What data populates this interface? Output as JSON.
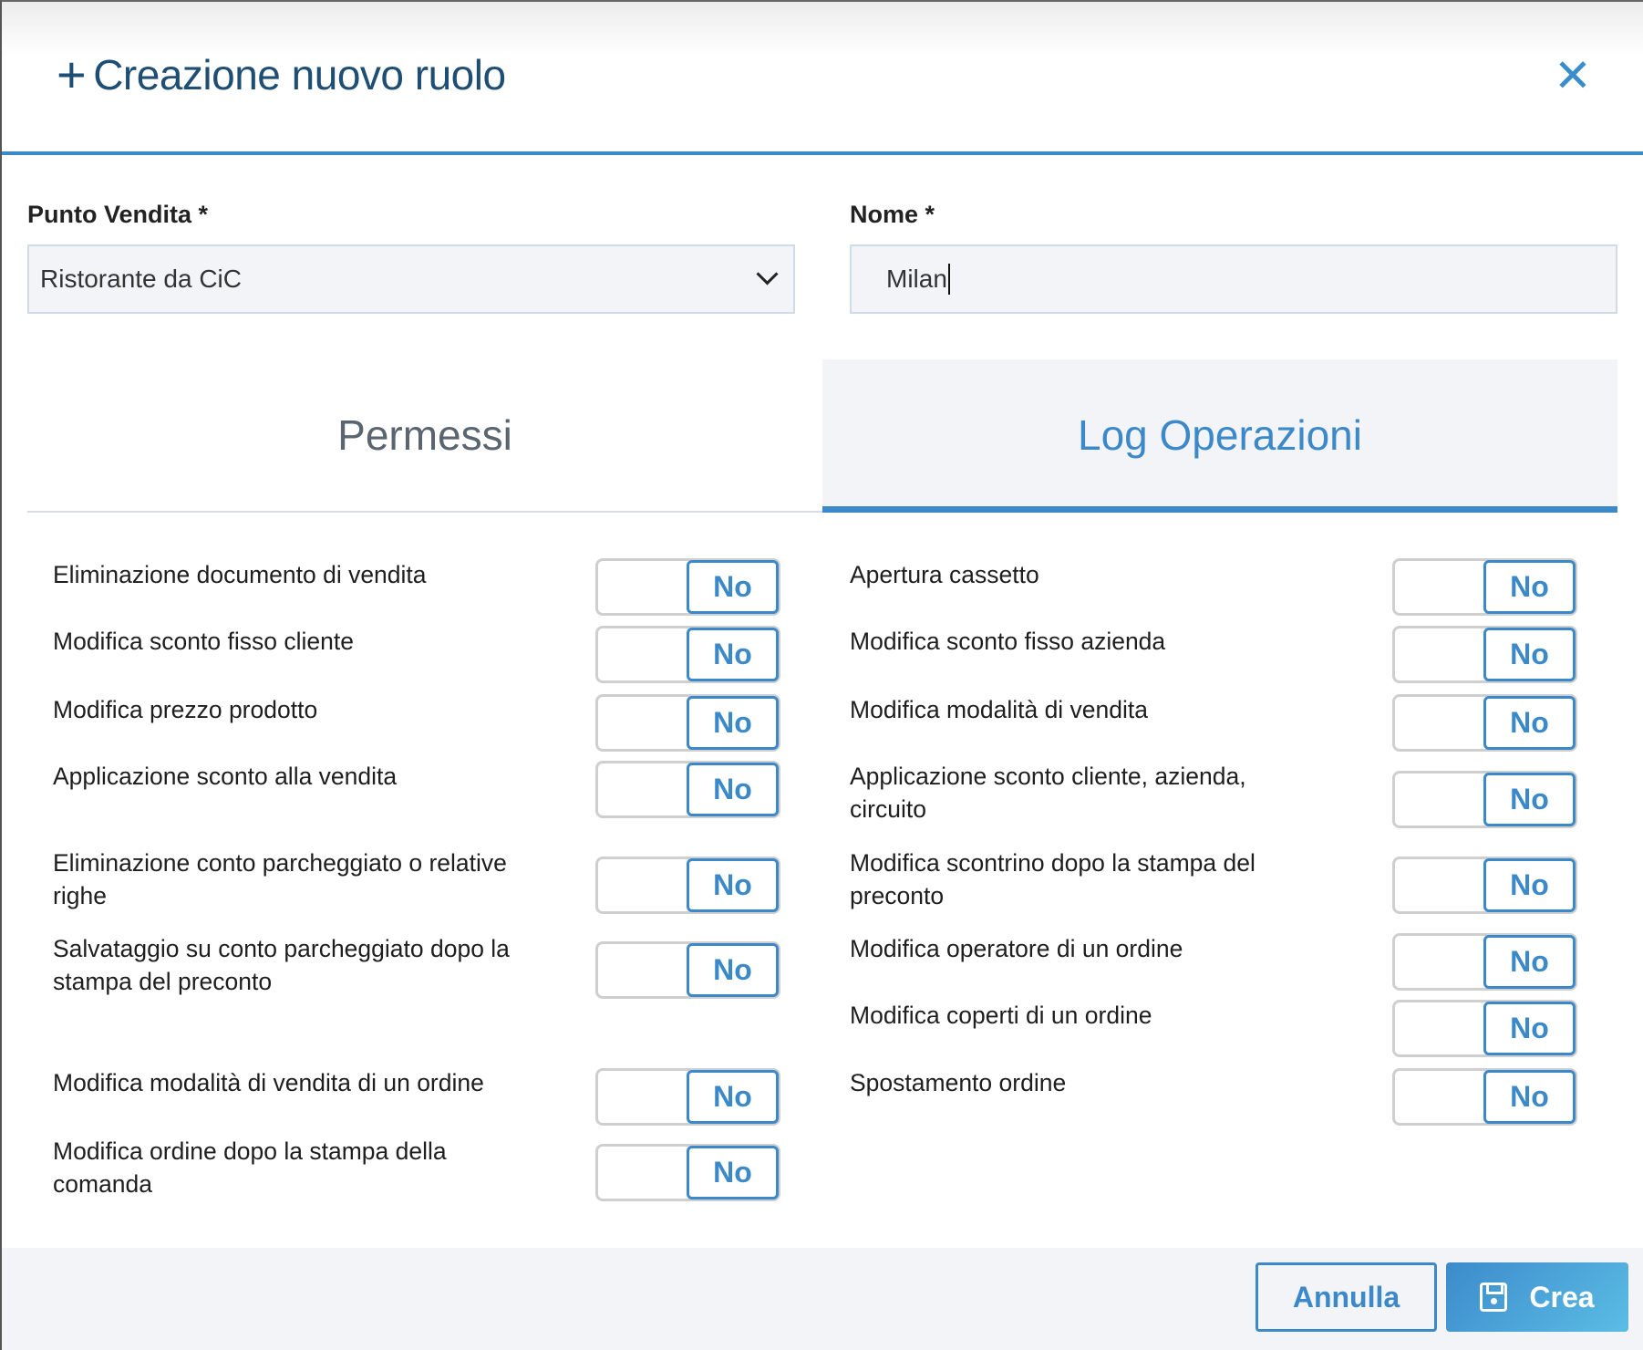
{
  "dialog": {
    "title": "Creazione nuovo ruolo",
    "title_icon": "plus-icon",
    "close_icon": "close-icon"
  },
  "form": {
    "punto_vendita": {
      "label": "Punto Vendita *",
      "value": "Ristorante da CiC"
    },
    "nome": {
      "label": "Nome *",
      "value": "Milan"
    }
  },
  "tabs": [
    {
      "label": "Permessi",
      "active": false
    },
    {
      "label": "Log Operazioni",
      "active": true
    }
  ],
  "permissions_left": [
    {
      "label": "Eliminazione documento di vendita",
      "value": "No"
    },
    {
      "label": "Modifica sconto fisso cliente",
      "value": "No"
    },
    {
      "label": "Modifica prezzo prodotto",
      "value": "No"
    },
    {
      "label": "Applicazione sconto alla vendita",
      "value": "No"
    },
    {
      "label": "Eliminazione conto parcheggiato o relative\nrighe",
      "value": "No"
    },
    {
      "label": "Salvataggio su conto parcheggiato dopo la\nstampa del preconto",
      "value": "No"
    },
    {
      "label": "Modifica modalità di vendita di un ordine",
      "value": "No"
    },
    {
      "label": "Modifica ordine dopo la stampa della\ncomanda",
      "value": "No"
    }
  ],
  "permissions_right": [
    {
      "label": "Apertura cassetto",
      "value": "No"
    },
    {
      "label": "Modifica sconto fisso azienda",
      "value": "No"
    },
    {
      "label": "Modifica modalità di vendita",
      "value": "No"
    },
    {
      "label": "Applicazione sconto cliente, azienda,\ncircuito",
      "value": "No"
    },
    {
      "label": "Modifica scontrino dopo la stampa del\npreconto",
      "value": "No"
    },
    {
      "label": "Modifica operatore di un ordine",
      "value": "No"
    },
    {
      "label": "Modifica coperti di un ordine",
      "value": "No"
    },
    {
      "label": "Spostamento ordine",
      "value": "No"
    }
  ],
  "footer": {
    "cancel_label": "Annulla",
    "create_label": "Crea",
    "create_icon": "save-icon"
  },
  "colors": {
    "accent": "#3c89c9",
    "title": "#1f4e74",
    "panel_bg": "#f3f4f8"
  }
}
